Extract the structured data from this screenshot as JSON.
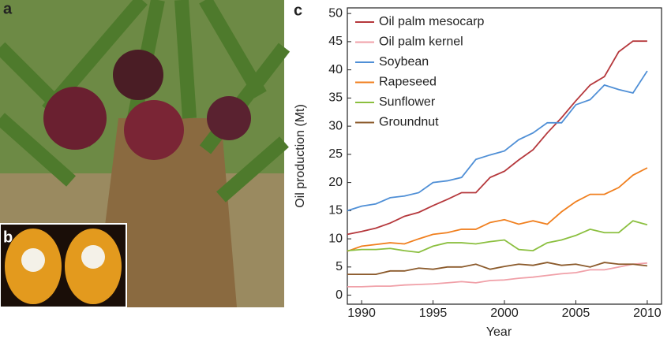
{
  "panel_labels": [
    "a",
    "b",
    "c"
  ],
  "chart_data": {
    "type": "line",
    "x_label": "Year",
    "y_label": "Oil production (Mt)",
    "x": [
      1989,
      1990,
      1991,
      1992,
      1993,
      1994,
      1995,
      1996,
      1997,
      1998,
      1999,
      2000,
      2001,
      2002,
      2003,
      2004,
      2005,
      2006,
      2007,
      2008,
      2009,
      2010
    ],
    "xlim": [
      1989,
      2011
    ],
    "xticks": [
      1990,
      1995,
      2000,
      2005,
      2010
    ],
    "ylim": [
      -1.6,
      51
    ],
    "yticks": [
      0,
      5,
      10,
      15,
      20,
      25,
      30,
      35,
      40,
      45,
      50
    ],
    "legend": "upper-left",
    "series": [
      {
        "name": "Oil palm mesocarp",
        "color": "#b5383c",
        "values": [
          10.8,
          11.3,
          11.9,
          12.8,
          14.0,
          14.7,
          15.9,
          17.0,
          18.2,
          18.2,
          20.9,
          22.0,
          24.0,
          25.8,
          28.8,
          31.5,
          34.5,
          37.3,
          38.8,
          43.2,
          45.1,
          45.1
        ]
      },
      {
        "name": "Oil palm kernel",
        "color": "#f0a0a8",
        "values": [
          1.5,
          1.5,
          1.6,
          1.6,
          1.8,
          1.9,
          2.0,
          2.2,
          2.4,
          2.2,
          2.6,
          2.7,
          3.0,
          3.2,
          3.5,
          3.8,
          4.0,
          4.5,
          4.5,
          5.0,
          5.5,
          5.7
        ]
      },
      {
        "name": "Soybean",
        "color": "#4f8fd6",
        "values": [
          15.0,
          15.8,
          16.2,
          17.3,
          17.6,
          18.2,
          20.0,
          20.3,
          20.9,
          24.1,
          24.9,
          25.6,
          27.6,
          28.8,
          30.6,
          30.6,
          33.8,
          34.7,
          37.3,
          36.5,
          35.9,
          39.8
        ]
      },
      {
        "name": "Rapeseed",
        "color": "#f07f1e",
        "values": [
          7.8,
          8.7,
          9.0,
          9.3,
          9.1,
          10.0,
          10.8,
          11.1,
          11.7,
          11.7,
          12.9,
          13.4,
          12.6,
          13.2,
          12.6,
          14.8,
          16.6,
          17.9,
          17.9,
          19.1,
          21.3,
          22.6
        ]
      },
      {
        "name": "Sunflower",
        "color": "#8bbf3f",
        "values": [
          7.9,
          8.1,
          8.1,
          8.3,
          7.9,
          7.6,
          8.7,
          9.3,
          9.3,
          9.1,
          9.5,
          9.8,
          8.1,
          7.9,
          9.3,
          9.8,
          10.6,
          11.7,
          11.1,
          11.1,
          13.2,
          12.5
        ]
      },
      {
        "name": "Groundnut",
        "color": "#8b5a2b",
        "values": [
          3.7,
          3.7,
          3.7,
          4.3,
          4.3,
          4.8,
          4.6,
          5.0,
          5.0,
          5.5,
          4.6,
          5.1,
          5.5,
          5.3,
          5.8,
          5.3,
          5.5,
          5.0,
          5.8,
          5.5,
          5.5,
          5.2
        ]
      }
    ]
  }
}
